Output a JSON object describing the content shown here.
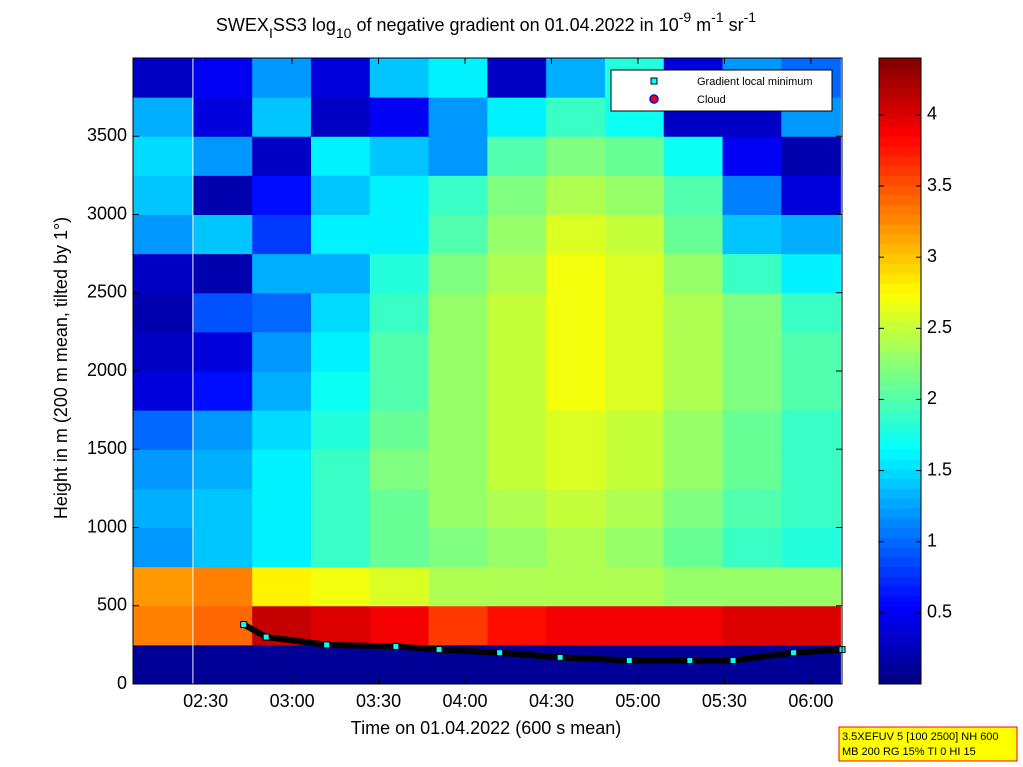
{
  "chart_data": {
    "type": "heatmap",
    "title_parts": [
      "SWEX",
      "I",
      "SS3 log",
      "10",
      " of negative gradient on 01.04.2022 in 10",
      "-9",
      " m",
      "-1",
      " sr",
      "-1"
    ],
    "x_label": "Time on 01.04.2022 (600 s mean)",
    "y_label": "Height in m (200 m mean, tilted by 1°)",
    "xlim": [
      2.08,
      6.18
    ],
    "xticks": [
      {
        "value": 2.5,
        "label": "02:30"
      },
      {
        "value": 3,
        "label": "03:00"
      },
      {
        "value": 3.5,
        "label": "03:30"
      },
      {
        "value": 4,
        "label": "04:00"
      },
      {
        "value": 4.5,
        "label": "04:30"
      },
      {
        "value": 5,
        "label": "05:00"
      },
      {
        "value": 5.5,
        "label": "05:30"
      },
      {
        "value": 6,
        "label": "06:00"
      }
    ],
    "ylim": [
      0,
      4000
    ],
    "yticks": [
      0,
      500,
      1000,
      1500,
      2000,
      2500,
      3000,
      3500
    ],
    "clim": [
      0,
      4.4
    ],
    "cticks": [
      0.5,
      1,
      1.5,
      2,
      2.5,
      3,
      3.5,
      4
    ],
    "x": [
      2.25,
      2.6,
      2.94,
      3.28,
      3.62,
      3.96,
      4.3,
      4.64,
      4.98,
      5.32,
      5.66,
      6.0
    ],
    "y": [
      125,
      375,
      625,
      875,
      1125,
      1375,
      1625,
      1875,
      2125,
      2375,
      2625,
      2875,
      3125,
      3375,
      3625,
      3875
    ],
    "z": [
      [
        0.1,
        0.1,
        0.1,
        0.1,
        0.1,
        0.1,
        0.1,
        0.1,
        0.1,
        0.1,
        0.1,
        0.1
      ],
      [
        3.3,
        3.4,
        4.1,
        4.0,
        3.9,
        3.6,
        3.8,
        3.9,
        3.9,
        3.9,
        4.0,
        4.0
      ],
      [
        3.2,
        3.3,
        2.8,
        2.7,
        2.6,
        2.4,
        2.4,
        2.4,
        2.4,
        2.3,
        2.3,
        2.3
      ],
      [
        1.2,
        1.4,
        1.6,
        1.9,
        2.1,
        2.2,
        2.3,
        2.4,
        2.3,
        2.1,
        1.9,
        1.8
      ],
      [
        1.3,
        1.4,
        1.6,
        1.9,
        2.1,
        2.3,
        2.4,
        2.5,
        2.4,
        2.2,
        2.0,
        1.9
      ],
      [
        1.2,
        1.3,
        1.6,
        1.9,
        2.2,
        2.3,
        2.5,
        2.6,
        2.5,
        2.3,
        2.1,
        1.9
      ],
      [
        1.0,
        1.2,
        1.5,
        1.8,
        2.1,
        2.3,
        2.5,
        2.6,
        2.5,
        2.3,
        2.1,
        1.9
      ],
      [
        0.4,
        0.6,
        1.3,
        1.7,
        2.0,
        2.3,
        2.5,
        2.7,
        2.6,
        2.4,
        2.2,
        2.0
      ],
      [
        0.3,
        0.4,
        1.2,
        1.6,
        2.0,
        2.3,
        2.5,
        2.7,
        2.6,
        2.4,
        2.2,
        2.0
      ],
      [
        0.2,
        0.9,
        1.0,
        1.5,
        1.9,
        2.3,
        2.5,
        2.7,
        2.6,
        2.4,
        2.2,
        1.9
      ],
      [
        0.3,
        0.2,
        1.3,
        1.3,
        1.8,
        2.2,
        2.4,
        2.7,
        2.6,
        2.3,
        1.9,
        1.6
      ],
      [
        1.2,
        1.4,
        0.8,
        1.6,
        1.6,
        2.0,
        2.3,
        2.6,
        2.5,
        2.1,
        1.4,
        1.3
      ],
      [
        1.4,
        0.2,
        0.6,
        1.4,
        1.6,
        1.9,
        2.2,
        2.4,
        2.3,
        2.0,
        1.1,
        0.4
      ],
      [
        1.5,
        1.2,
        0.3,
        1.6,
        1.4,
        1.2,
        2.0,
        2.2,
        2.1,
        1.7,
        0.5,
        0.2
      ],
      [
        1.3,
        0.4,
        1.4,
        0.3,
        0.5,
        1.2,
        1.6,
        1.9,
        1.7,
        0.3,
        0.3,
        1.2
      ],
      [
        0.3,
        0.5,
        1.2,
        0.4,
        1.4,
        1.6,
        0.3,
        1.3,
        1.8,
        0.4,
        1.2,
        1.0
      ]
    ],
    "series": [
      {
        "name": "Gradient local minimum",
        "color": "#00ffff",
        "x": [
          2.72,
          2.85,
          3.2,
          3.6,
          3.85,
          4.2,
          4.55,
          4.95,
          5.3,
          5.55,
          5.9,
          6.18
        ],
        "values": [
          380,
          300,
          250,
          240,
          220,
          200,
          170,
          150,
          150,
          150,
          200,
          220
        ]
      },
      {
        "name": "Cloud",
        "color": "#ff0000",
        "x": [],
        "values": []
      }
    ],
    "footnote": [
      "3.5XEFUV 5 [100 2500] NH 600",
      "MB 200 RG 15% TI 0 HI 15"
    ]
  }
}
